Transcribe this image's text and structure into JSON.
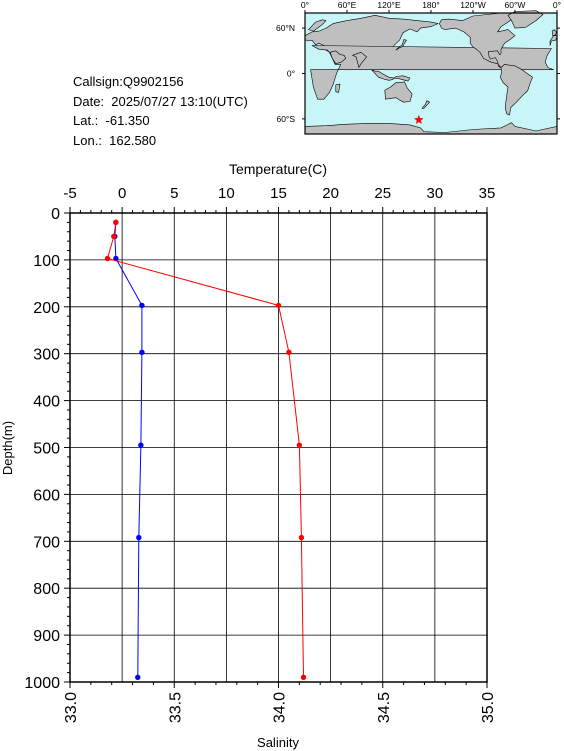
{
  "station": {
    "callsign": "Callsign:Q9902156",
    "date": "Date:  2025/07/27 13:10(UTC)",
    "lat": "Lat.:  -61.350",
    "lon": "Lon.:  162.580"
  },
  "map": {
    "lon_labels": [
      "0°",
      "60°E",
      "120°E",
      "180°",
      "120°W",
      "60°W",
      "0°"
    ],
    "lat_labels": [
      "60°N",
      "0°",
      "60°S"
    ],
    "station_lon": 162.58,
    "station_lat": -61.35,
    "ocean_color": "#c8f5f8",
    "land_color": "#bfbfbf",
    "marker_color": "#ff0000"
  },
  "chart_data": {
    "type": "line",
    "top_axis_label": "Temperature(C)",
    "bottom_axis_label": "Salinity",
    "left_axis_label": "Depth(m)",
    "temperature_range": [
      -5,
      35
    ],
    "temperature_ticks": [
      "-5",
      "0",
      "5",
      "10",
      "15",
      "20",
      "25",
      "30",
      "35"
    ],
    "salinity_range": [
      33.0,
      35.0
    ],
    "salinity_ticks": [
      "33.0",
      "33.5",
      "34.0",
      "34.5",
      "35.0"
    ],
    "depth_range": [
      0,
      1000
    ],
    "depth_ticks": [
      "0",
      "100",
      "200",
      "300",
      "400",
      "500",
      "600",
      "700",
      "800",
      "900",
      "1000"
    ],
    "grid": true,
    "series": [
      {
        "key": "temperature",
        "axis": "temperature",
        "color": "#0000ff",
        "points": [
          {
            "value": -0.6,
            "depth": 20
          },
          {
            "value": -0.7,
            "depth": 50
          },
          {
            "value": -0.6,
            "depth": 97
          },
          {
            "value": 1.9,
            "depth": 197
          },
          {
            "value": 1.9,
            "depth": 297
          },
          {
            "value": 1.8,
            "depth": 495
          },
          {
            "value": 1.6,
            "depth": 692
          },
          {
            "value": 1.5,
            "depth": 990
          }
        ]
      },
      {
        "key": "salinity",
        "axis": "salinity",
        "color": "#ff0000",
        "points": [
          {
            "value": 33.22,
            "depth": 20
          },
          {
            "value": 33.21,
            "depth": 50
          },
          {
            "value": 33.18,
            "depth": 97
          },
          {
            "value": 34.0,
            "depth": 197
          },
          {
            "value": 34.05,
            "depth": 297
          },
          {
            "value": 34.1,
            "depth": 495
          },
          {
            "value": 34.11,
            "depth": 692
          },
          {
            "value": 34.12,
            "depth": 990
          }
        ]
      }
    ]
  }
}
